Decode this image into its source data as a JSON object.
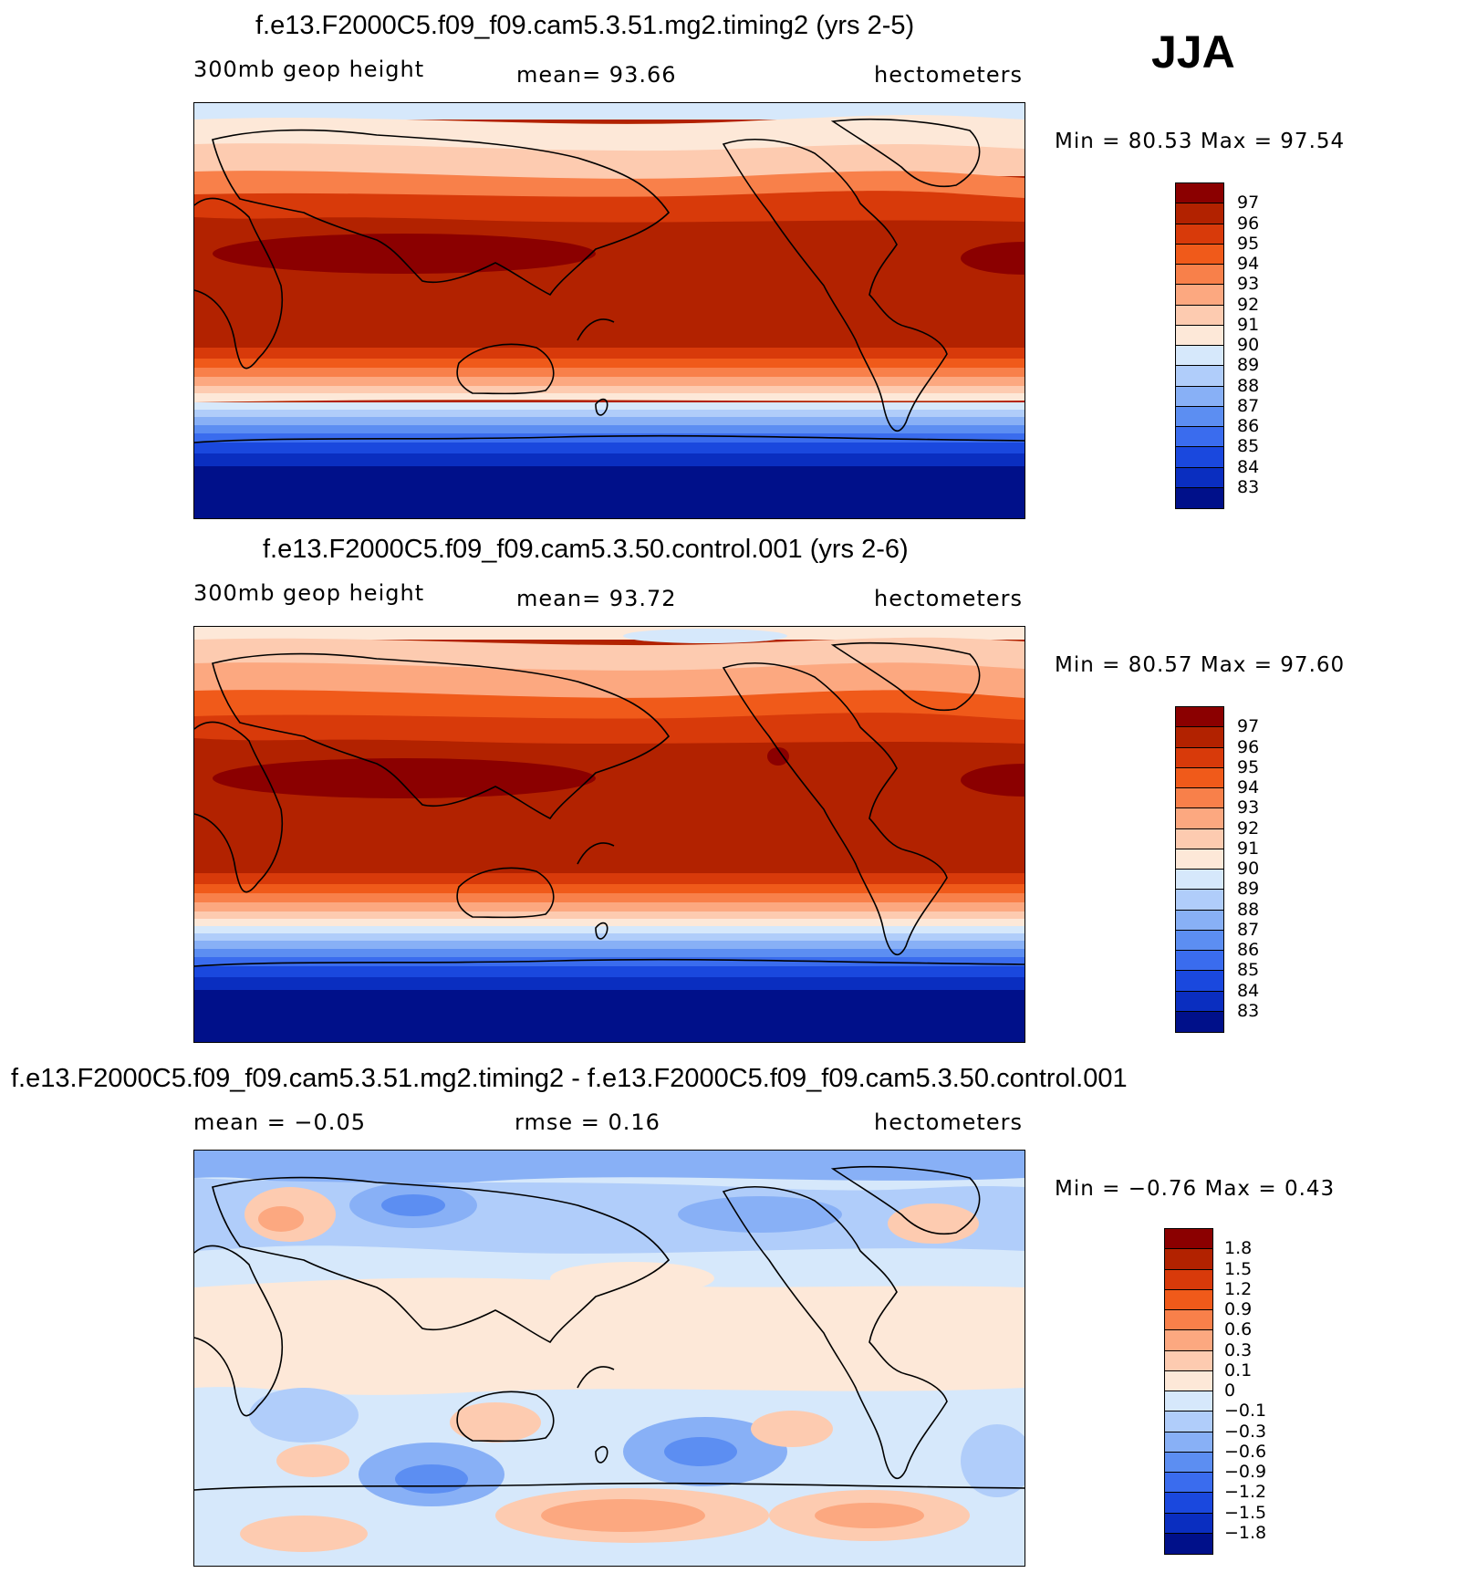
{
  "season": "JJA",
  "panels": [
    {
      "title": "f.e13.F2000C5.f09_f09.cam5.3.51.mg2.timing2 (yrs 2-5)",
      "variable": "300mb geop height",
      "stat": "mean=   93.66",
      "units": "hectometers",
      "minmax": "Min =   80.53 Max =   97.54",
      "colorbar": {
        "labels": [
          "97",
          "96",
          "95",
          "94",
          "93",
          "92",
          "91",
          "90",
          "89",
          "88",
          "87",
          "86",
          "85",
          "84",
          "83"
        ],
        "colors": [
          "#8b0000",
          "#b22200",
          "#d83a0a",
          "#f05a1a",
          "#f8804a",
          "#fca880",
          "#fdcbb0",
          "#fde8d8",
          "#d6e8fb",
          "#b0cdfa",
          "#88b0f6",
          "#5c8ef2",
          "#3a6cee",
          "#1a48de",
          "#0a2ec0",
          "#00108a"
        ]
      },
      "map_type": "absolute"
    },
    {
      "title": "f.e13.F2000C5.f09_f09.cam5.3.50.control.001 (yrs 2-6)",
      "variable": "300mb geop height",
      "stat": "mean=   93.72",
      "units": "hectometers",
      "minmax": "Min =   80.57 Max =   97.60",
      "colorbar": {
        "labels": [
          "97",
          "96",
          "95",
          "94",
          "93",
          "92",
          "91",
          "90",
          "89",
          "88",
          "87",
          "86",
          "85",
          "84",
          "83"
        ],
        "colors": [
          "#8b0000",
          "#b22200",
          "#d83a0a",
          "#f05a1a",
          "#f8804a",
          "#fca880",
          "#fdcbb0",
          "#fde8d8",
          "#d6e8fb",
          "#b0cdfa",
          "#88b0f6",
          "#5c8ef2",
          "#3a6cee",
          "#1a48de",
          "#0a2ec0",
          "#00108a"
        ]
      },
      "map_type": "absolute"
    },
    {
      "title": "f.e13.F2000C5.f09_f09.cam5.3.51.mg2.timing2 - f.e13.F2000C5.f09_f09.cam5.3.50.control.001",
      "variable": "mean =   −0.05",
      "stat": "rmse =    0.16",
      "units": "hectometers",
      "minmax": "Min =  −0.76 Max =    0.43",
      "colorbar": {
        "labels": [
          "1.8",
          "1.5",
          "1.2",
          "0.9",
          "0.6",
          "0.3",
          "0.1",
          "0",
          "−0.1",
          "−0.3",
          "−0.6",
          "−0.9",
          "−1.2",
          "−1.5",
          "−1.8"
        ],
        "colors": [
          "#8b0000",
          "#b22200",
          "#d83a0a",
          "#f05a1a",
          "#f8804a",
          "#fca880",
          "#fdcbb0",
          "#fde8d8",
          "#d6e8fb",
          "#b0cdfa",
          "#88b0f6",
          "#5c8ef2",
          "#3a6cee",
          "#1a48de",
          "#0a2ec0",
          "#00108a"
        ]
      },
      "map_type": "difference"
    }
  ]
}
